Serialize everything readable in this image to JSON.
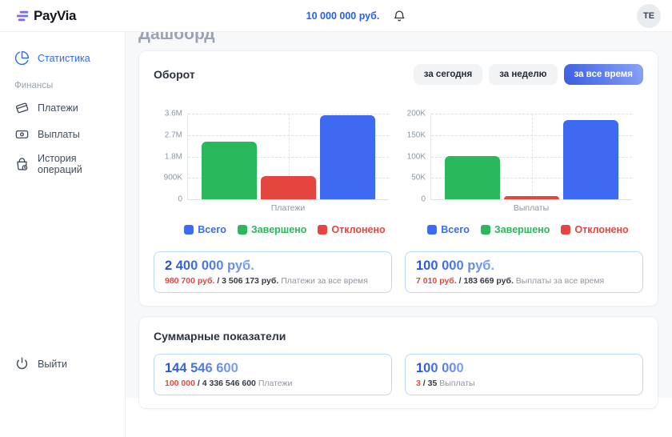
{
  "topbar": {
    "logo": "PayVia",
    "balance": "10 000 000 руб.",
    "avatar_initials": "TE"
  },
  "sidebar": {
    "statistics": "Статистика",
    "section": "Финансы",
    "payments": "Платежи",
    "payouts": "Выплаты",
    "history": "История операций",
    "logout": "Выйти"
  },
  "page_title": "Дашборд",
  "turnover_card": {
    "title": "Оборот",
    "filters": [
      "за сегодня",
      "за неделю",
      "за все время"
    ],
    "active_filter": "за все время",
    "stats": [
      {
        "big": "2 400 000 руб.",
        "completed": "980 700 руб.",
        "separator": "/",
        "total": "3 506 173 руб.",
        "caption": "Платежи за все время"
      },
      {
        "big": "100 000 руб.",
        "completed": "7 010 руб.",
        "separator": "/",
        "total": "183 669 руб.",
        "caption": "Выплаты за все время"
      }
    ]
  },
  "summary_card": {
    "title": "Суммарные показатели",
    "stats": [
      {
        "big": "144 546 600",
        "completed": "100 000",
        "separator": "/",
        "total": "4 336 546 600",
        "caption": "Платежи"
      },
      {
        "big": "100 000",
        "completed": "3",
        "separator": "/",
        "total": "35",
        "caption": "Выплаты"
      }
    ]
  },
  "colors": {
    "accent_blue": "#2f6bf0",
    "bar_blue": "#3e6af2",
    "bar_green": "#2ab85c",
    "bar_red": "#e5453f",
    "stat_border": "#bdd7f8"
  },
  "chart_data": [
    {
      "type": "bar",
      "title": "Оборот — Платежи",
      "categories": [
        "Платежи"
      ],
      "series": [
        {
          "name": "Всего",
          "value": 3506173,
          "color": "#3e6af2"
        },
        {
          "name": "Завершено",
          "value": 2400000,
          "color": "#2ab85c"
        },
        {
          "name": "Отклонено",
          "value": 980700,
          "color": "#e5453f"
        }
      ],
      "bar_order": [
        "Завершено",
        "Отклонено",
        "Всего"
      ],
      "legend": [
        "Всего",
        "Завершено",
        "Отклонено"
      ],
      "legend_position": "bottom",
      "grid": true,
      "ylim": [
        0,
        3600000
      ],
      "yticks": [
        {
          "label": "0",
          "value": 0
        },
        {
          "label": "900K",
          "value": 900000
        },
        {
          "label": "1.8M",
          "value": 1800000
        },
        {
          "label": "2.7M",
          "value": 2700000
        },
        {
          "label": "3.6M",
          "value": 3600000
        }
      ]
    },
    {
      "type": "bar",
      "title": "Оборот — Выплаты",
      "categories": [
        "Выплаты"
      ],
      "series": [
        {
          "name": "Всего",
          "value": 183669,
          "color": "#3e6af2"
        },
        {
          "name": "Завершено",
          "value": 100000,
          "color": "#2ab85c"
        },
        {
          "name": "Отклонено",
          "value": 7010,
          "color": "#e5453f"
        }
      ],
      "bar_order": [
        "Завершено",
        "Отклонено",
        "Всего"
      ],
      "legend": [
        "Всего",
        "Завершено",
        "Отклонено"
      ],
      "legend_position": "bottom",
      "grid": true,
      "ylim": [
        0,
        200000
      ],
      "yticks": [
        {
          "label": "0",
          "value": 0
        },
        {
          "label": "50K",
          "value": 50000
        },
        {
          "label": "100K",
          "value": 100000
        },
        {
          "label": "150K",
          "value": 150000
        },
        {
          "label": "200K",
          "value": 200000
        }
      ]
    }
  ]
}
